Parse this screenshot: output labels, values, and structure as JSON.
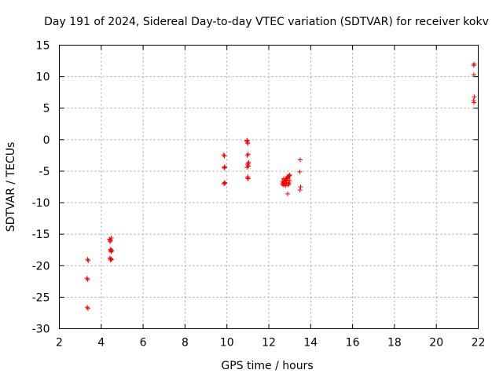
{
  "chart_data": {
    "type": "scatter",
    "title": "Day 191 of 2024, Sidereal Day-to-day VTEC variation (SDTVAR) for receiver kokv",
    "xlabel": "GPS time / hours",
    "ylabel": "SDTVAR / TECUs",
    "xlim": [
      2,
      22
    ],
    "ylim": [
      -30,
      15
    ],
    "xticks": [
      2,
      4,
      6,
      8,
      10,
      12,
      14,
      16,
      18,
      20,
      22
    ],
    "yticks": [
      -30,
      -25,
      -20,
      -15,
      -10,
      -5,
      0,
      5,
      10,
      15
    ],
    "grid": true,
    "marker": "plus",
    "color": "#ff0000",
    "series": [
      {
        "name": "SDTVAR",
        "x": [
          3.35,
          3.38,
          3.32,
          3.36,
          3.33,
          3.37,
          4.4,
          4.45,
          4.48,
          4.42,
          4.46,
          4.5,
          4.43,
          4.47,
          4.41,
          4.49,
          4.44,
          4.46,
          4.42,
          4.48,
          9.85,
          9.88,
          9.9,
          9.87,
          9.89,
          9.86,
          9.91,
          9.88,
          10.95,
          10.98,
          11.0,
          11.02,
          10.97,
          11.01,
          10.99,
          11.03,
          10.96,
          11.0,
          10.98,
          11.02,
          11.04,
          10.97,
          12.65,
          12.7,
          12.75,
          12.8,
          12.85,
          12.9,
          12.95,
          13.0,
          12.68,
          12.72,
          12.78,
          12.82,
          12.88,
          12.92,
          12.98,
          12.66,
          12.74,
          12.84,
          12.94,
          12.71,
          12.86,
          12.96,
          12.76,
          12.9,
          13.0,
          12.8,
          12.93,
          13.5,
          13.48,
          13.52,
          13.49,
          21.78,
          21.8,
          21.79,
          21.81,
          21.8,
          21.78
        ],
        "y": [
          -19.0,
          -19.2,
          -22.0,
          -22.2,
          -26.6,
          -26.8,
          -15.8,
          -16.0,
          -15.6,
          -16.2,
          -17.4,
          -17.6,
          -17.5,
          -17.8,
          -18.8,
          -19.0,
          -19.1,
          -18.9,
          -15.9,
          -17.7,
          -2.4,
          -2.6,
          -4.3,
          -4.5,
          -6.8,
          -7.0,
          -6.9,
          -4.4,
          -0.2,
          -0.4,
          -0.6,
          -2.3,
          -2.5,
          -3.8,
          -4.0,
          -4.2,
          -4.4,
          -5.9,
          -6.1,
          -6.2,
          -3.6,
          -0.1,
          -7.0,
          -6.8,
          -6.6,
          -6.4,
          -6.2,
          -6.0,
          -5.8,
          -5.6,
          -7.2,
          -6.9,
          -6.5,
          -6.3,
          -5.9,
          -6.1,
          -5.7,
          -6.6,
          -7.1,
          -6.8,
          -6.9,
          -6.2,
          -6.4,
          -7.0,
          -6.7,
          -8.6,
          -6.5,
          -7.3,
          -7.2,
          -3.2,
          -5.1,
          -7.5,
          -8.0,
          11.8,
          12.0,
          10.3,
          6.8,
          5.9,
          6.2
        ]
      }
    ]
  }
}
